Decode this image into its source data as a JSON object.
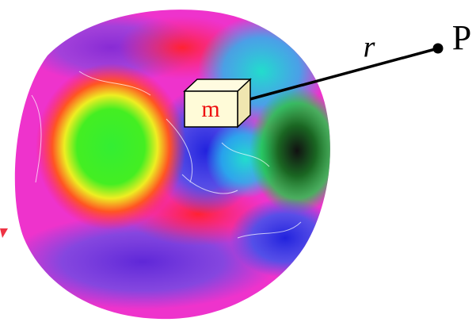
{
  "labels": {
    "mass": "m",
    "distance": "r",
    "point": "P"
  }
}
